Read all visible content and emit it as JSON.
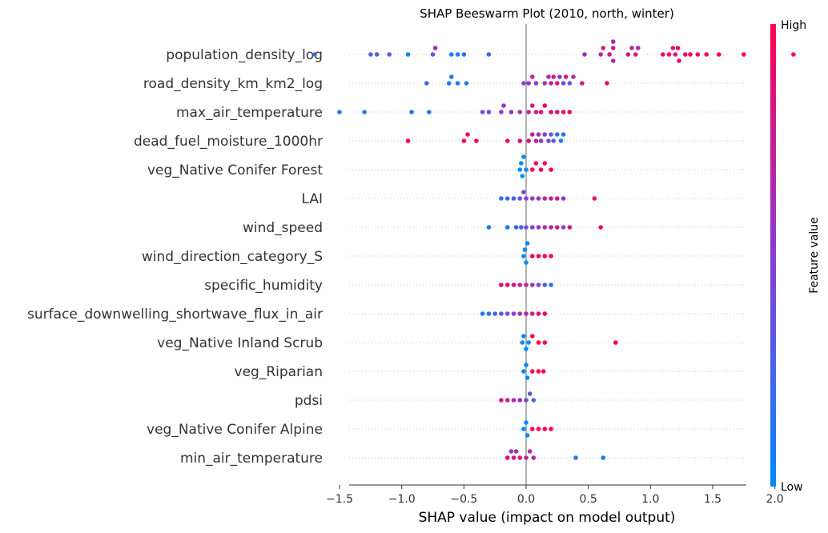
{
  "chart_data": {
    "type": "scatter",
    "subtype": "beeswarm",
    "title": "SHAP Beeswarm Plot (2010, north, winter)",
    "xlabel": "SHAP value (impact on model output)",
    "xlim": [
      -1.9,
      2.35
    ],
    "xticks": [
      -1.5,
      -1.0,
      -0.5,
      0.0,
      0.5,
      1.0,
      1.5,
      2.0
    ],
    "xtick_labels": [
      "−1.5",
      "−1.0",
      "−0.5",
      "0.0",
      "0.5",
      "1.0",
      "1.5",
      "2.0"
    ],
    "colorbar": {
      "label": "Feature value",
      "high_label": "High",
      "low_label": "Low",
      "high_color": "#ff0052",
      "mid_color": "#8a3cd2",
      "low_color": "#008bfb"
    },
    "grid": "horizontal dotted per feature",
    "features": [
      {
        "name": "population_density_log",
        "points": [
          [
            -1.7,
            0.2
          ],
          [
            -1.25,
            0.3
          ],
          [
            -1.2,
            0.3
          ],
          [
            -1.1,
            0.3
          ],
          [
            -0.95,
            0.1
          ],
          [
            -0.75,
            0.3
          ],
          [
            -0.73,
            0.65
          ],
          [
            -0.6,
            0.1
          ],
          [
            -0.55,
            0.1
          ],
          [
            -0.5,
            0.2
          ],
          [
            -0.3,
            0.2
          ],
          [
            0.47,
            0.6
          ],
          [
            0.6,
            0.7
          ],
          [
            0.62,
            0.8
          ],
          [
            0.67,
            0.75
          ],
          [
            0.7,
            0.75
          ],
          [
            0.7,
            0.6
          ],
          [
            0.7,
            0.65
          ],
          [
            0.82,
            0.75
          ],
          [
            0.85,
            0.65
          ],
          [
            0.88,
            0.75
          ],
          [
            0.9,
            0.7
          ],
          [
            1.1,
            0.9
          ],
          [
            1.15,
            0.95
          ],
          [
            1.18,
            0.85
          ],
          [
            1.2,
            0.8
          ],
          [
            1.22,
            0.95
          ],
          [
            1.23,
            0.9
          ],
          [
            1.28,
            0.92
          ],
          [
            1.32,
            0.95
          ],
          [
            1.38,
            0.95
          ],
          [
            1.45,
            0.95
          ],
          [
            1.55,
            0.95
          ],
          [
            1.75,
            1.0
          ],
          [
            2.15,
            1.0
          ]
        ]
      },
      {
        "name": "road_density_km_km2_log",
        "points": [
          [
            -0.8,
            0.2
          ],
          [
            -0.62,
            0.1
          ],
          [
            -0.6,
            0.15
          ],
          [
            -0.55,
            0.1
          ],
          [
            -0.48,
            0.15
          ],
          [
            -0.02,
            0.4
          ],
          [
            0.02,
            0.6
          ],
          [
            0.05,
            0.7
          ],
          [
            0.08,
            0.5
          ],
          [
            0.15,
            0.55
          ],
          [
            0.18,
            0.6
          ],
          [
            0.2,
            0.75
          ],
          [
            0.22,
            0.8
          ],
          [
            0.25,
            0.85
          ],
          [
            0.27,
            0.5
          ],
          [
            0.3,
            0.4
          ],
          [
            0.32,
            0.8
          ],
          [
            0.35,
            0.3
          ],
          [
            0.38,
            0.6
          ],
          [
            0.45,
            0.85
          ],
          [
            0.65,
            0.95
          ]
        ]
      },
      {
        "name": "max_air_temperature",
        "points": [
          [
            -1.5,
            0.1
          ],
          [
            -1.3,
            0.1
          ],
          [
            -0.92,
            0.1
          ],
          [
            -0.78,
            0.2
          ],
          [
            -0.35,
            0.4
          ],
          [
            -0.3,
            0.45
          ],
          [
            -0.2,
            0.55
          ],
          [
            -0.18,
            0.5
          ],
          [
            -0.12,
            0.6
          ],
          [
            -0.05,
            0.65
          ],
          [
            0.02,
            0.7
          ],
          [
            0.05,
            0.75
          ],
          [
            0.08,
            0.8
          ],
          [
            0.12,
            0.85
          ],
          [
            0.15,
            0.9
          ],
          [
            0.2,
            0.9
          ],
          [
            0.25,
            0.9
          ],
          [
            0.3,
            0.95
          ],
          [
            0.35,
            0.95
          ]
        ]
      },
      {
        "name": "dead_fuel_moisture_1000hr",
        "points": [
          [
            -0.95,
            1.0
          ],
          [
            -0.5,
            1.0
          ],
          [
            -0.47,
            0.95
          ],
          [
            -0.4,
            0.95
          ],
          [
            -0.15,
            0.95
          ],
          [
            -0.05,
            0.9
          ],
          [
            0.02,
            0.85
          ],
          [
            0.05,
            0.75
          ],
          [
            0.08,
            0.7
          ],
          [
            0.1,
            0.6
          ],
          [
            0.12,
            0.55
          ],
          [
            0.15,
            0.45
          ],
          [
            0.18,
            0.4
          ],
          [
            0.2,
            0.35
          ],
          [
            0.22,
            0.3
          ],
          [
            0.25,
            0.2
          ],
          [
            0.28,
            0.15
          ],
          [
            0.3,
            0.1
          ]
        ]
      },
      {
        "name": "veg_Native Conifer Forest",
        "points": [
          [
            -0.05,
            0.0
          ],
          [
            -0.03,
            0.0
          ],
          [
            -0.02,
            0.0
          ],
          [
            0.0,
            0.0
          ],
          [
            -0.04,
            0.0
          ],
          [
            0.05,
            1.0
          ],
          [
            0.08,
            1.0
          ],
          [
            0.12,
            1.0
          ],
          [
            0.15,
            1.0
          ],
          [
            0.2,
            1.0
          ]
        ]
      },
      {
        "name": "LAI",
        "points": [
          [
            -0.2,
            0.1
          ],
          [
            -0.15,
            0.2
          ],
          [
            -0.1,
            0.3
          ],
          [
            -0.05,
            0.35
          ],
          [
            -0.02,
            0.4
          ],
          [
            0.0,
            0.5
          ],
          [
            0.05,
            0.55
          ],
          [
            0.1,
            0.6
          ],
          [
            0.15,
            0.7
          ],
          [
            0.2,
            0.75
          ],
          [
            0.25,
            0.8
          ],
          [
            0.3,
            0.5
          ],
          [
            0.55,
            0.9
          ]
        ]
      },
      {
        "name": "wind_speed",
        "points": [
          [
            -0.3,
            0.1
          ],
          [
            -0.15,
            0.1
          ],
          [
            -0.08,
            0.2
          ],
          [
            -0.04,
            0.3
          ],
          [
            0.0,
            0.4
          ],
          [
            0.05,
            0.5
          ],
          [
            0.1,
            0.55
          ],
          [
            0.15,
            0.6
          ],
          [
            0.2,
            0.7
          ],
          [
            0.25,
            0.75
          ],
          [
            0.3,
            0.5
          ],
          [
            0.35,
            0.8
          ],
          [
            0.6,
            0.95
          ]
        ]
      },
      {
        "name": "wind_direction_category_S",
        "points": [
          [
            -0.02,
            0.0
          ],
          [
            0.0,
            0.0
          ],
          [
            -0.01,
            0.0
          ],
          [
            0.01,
            0.0
          ],
          [
            0.05,
            1.0
          ],
          [
            0.1,
            1.0
          ],
          [
            0.15,
            1.0
          ],
          [
            0.2,
            1.0
          ]
        ]
      },
      {
        "name": "specific_humidity",
        "points": [
          [
            -0.2,
            0.9
          ],
          [
            -0.15,
            0.85
          ],
          [
            -0.1,
            0.8
          ],
          [
            -0.05,
            0.75
          ],
          [
            0.0,
            0.7
          ],
          [
            0.05,
            0.6
          ],
          [
            0.1,
            0.4
          ],
          [
            0.15,
            0.3
          ],
          [
            0.2,
            0.15
          ]
        ]
      },
      {
        "name": "surface_downwelling_shortwave_flux_in_air",
        "points": [
          [
            -0.35,
            0.1
          ],
          [
            -0.3,
            0.15
          ],
          [
            -0.25,
            0.2
          ],
          [
            -0.2,
            0.3
          ],
          [
            -0.15,
            0.4
          ],
          [
            -0.1,
            0.5
          ],
          [
            -0.05,
            0.6
          ],
          [
            0.0,
            0.7
          ],
          [
            0.05,
            0.8
          ],
          [
            0.1,
            0.9
          ],
          [
            0.15,
            0.95
          ]
        ]
      },
      {
        "name": "veg_Native Inland Scrub",
        "points": [
          [
            -0.03,
            0.0
          ],
          [
            0.0,
            0.0
          ],
          [
            -0.02,
            0.0
          ],
          [
            0.02,
            0.0
          ],
          [
            0.05,
            1.0
          ],
          [
            0.1,
            1.0
          ],
          [
            0.15,
            1.0
          ],
          [
            0.72,
            1.0
          ]
        ]
      },
      {
        "name": "veg_Riparian",
        "points": [
          [
            -0.02,
            0.0
          ],
          [
            0.0,
            0.0
          ],
          [
            0.01,
            0.0
          ],
          [
            0.05,
            1.0
          ],
          [
            0.1,
            1.0
          ],
          [
            0.14,
            1.0
          ]
        ]
      },
      {
        "name": "pdsi",
        "points": [
          [
            -0.2,
            0.8
          ],
          [
            -0.15,
            0.75
          ],
          [
            -0.1,
            0.65
          ],
          [
            -0.05,
            0.55
          ],
          [
            0.0,
            0.45
          ],
          [
            0.03,
            0.35
          ],
          [
            0.06,
            0.2
          ]
        ]
      },
      {
        "name": "veg_Native Conifer Alpine",
        "points": [
          [
            -0.02,
            0.0
          ],
          [
            0.0,
            0.0
          ],
          [
            0.01,
            0.0
          ],
          [
            0.05,
            1.0
          ],
          [
            0.1,
            1.0
          ],
          [
            0.15,
            1.0
          ],
          [
            0.2,
            1.0
          ]
        ]
      },
      {
        "name": "min_air_temperature",
        "points": [
          [
            -0.15,
            0.9
          ],
          [
            -0.1,
            0.85
          ],
          [
            -0.05,
            0.8
          ],
          [
            0.0,
            0.75
          ],
          [
            0.03,
            0.7
          ],
          [
            0.06,
            0.65
          ],
          [
            -0.08,
            0.6
          ],
          [
            -0.12,
            0.55
          ],
          [
            0.4,
            0.1
          ],
          [
            0.62,
            0.1
          ]
        ]
      }
    ]
  }
}
